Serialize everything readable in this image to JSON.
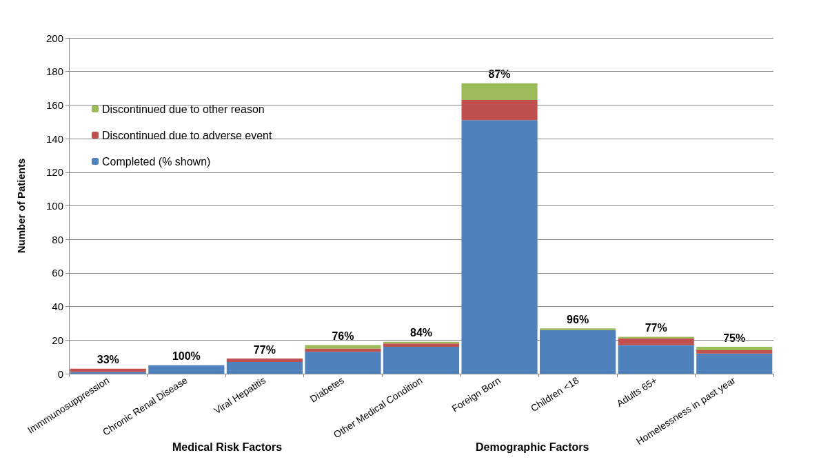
{
  "chart_data": {
    "type": "bar",
    "stacked": true,
    "ylabel": "Number of Patients",
    "categories": [
      "Immmunosuppression",
      "Chronic Renal Disease",
      "Viral Hepatitis",
      "Diabetes",
      "Other Medical Condition",
      "Foreign Born",
      "Children <18",
      "Adults 65+",
      "Homelessness in past year"
    ],
    "series": [
      {
        "name": "Completed (% shown)",
        "color": "#4f81bd",
        "values": [
          1,
          5,
          7,
          13,
          16,
          151,
          26,
          17,
          12
        ]
      },
      {
        "name": "Discontinued due to adverse event",
        "color": "#c0504d",
        "values": [
          2,
          0,
          2,
          2,
          2,
          12,
          0,
          4,
          2
        ]
      },
      {
        "name": "Discontinued due to other reason",
        "color": "#9bbb59",
        "values": [
          0,
          0,
          0,
          2,
          1,
          10,
          1,
          1,
          2
        ]
      }
    ],
    "ylim": [
      0,
      200
    ],
    "yticks": [
      0,
      20,
      40,
      60,
      80,
      100,
      120,
      140,
      160,
      180,
      200
    ],
    "grid": "y",
    "legend": "top left",
    "annotations": [
      "Medical Risk Factors",
      "Demographic Factors",
      {
        "text": "33%",
        "x": "Immmunosuppression",
        "y": 3
      },
      {
        "text": "100%",
        "x": "Chronic Renal Disease",
        "y": 5
      },
      {
        "text": "77%",
        "x": "Viral Hepatitis",
        "y": 9
      },
      {
        "text": "76%",
        "x": "Diabetes",
        "y": 17
      },
      {
        "text": "84%",
        "x": "Other Medical Condition",
        "y": 19
      },
      {
        "text": "87%",
        "x": "Foreign Born",
        "y": 173
      },
      {
        "text": "96%",
        "x": "Children <18",
        "y": 27
      },
      {
        "text": "77%",
        "x": "Adults 65+",
        "y": 22
      },
      {
        "text": "75%",
        "x": "Homelessness in past year",
        "y": 16
      }
    ]
  }
}
